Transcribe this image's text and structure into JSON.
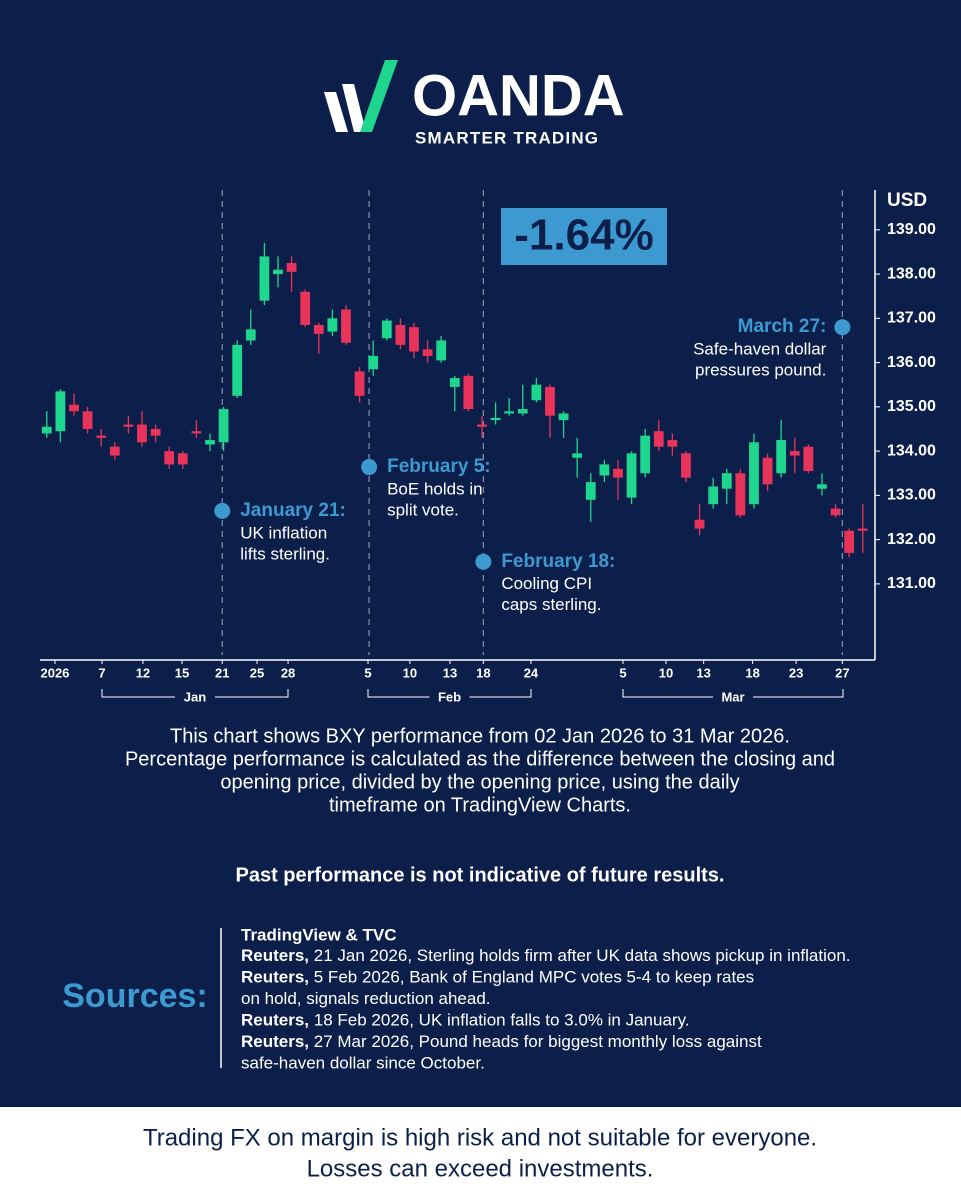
{
  "brand": {
    "name": "OANDA",
    "tagline": "SMARTER TRADING"
  },
  "chart_data": {
    "type": "candlestick",
    "y_axis_label": "USD",
    "performance_label": "-1.64%",
    "up_color": "#1fd68e",
    "down_color": "#e8345b",
    "ylim": [
      129.28,
      139.9
    ],
    "yticks": [
      {
        "value": 131,
        "label": "131.00"
      },
      {
        "value": 132,
        "label": "132.00"
      },
      {
        "value": 133,
        "label": "133.00"
      },
      {
        "value": 134,
        "label": "134.00"
      },
      {
        "value": 135,
        "label": "135.00"
      },
      {
        "value": 136,
        "label": "136.00"
      },
      {
        "value": 137,
        "label": "137.00"
      },
      {
        "value": 138,
        "label": "138.00"
      },
      {
        "value": 139,
        "label": "139.00"
      }
    ],
    "xlim": [
      -0.5,
      60.9
    ],
    "xticks": [
      {
        "value": 0.6,
        "label": "2026"
      },
      {
        "value": 4.06,
        "label": "7"
      },
      {
        "value": 7.07,
        "label": "12"
      },
      {
        "value": 9.94,
        "label": "15"
      },
      {
        "value": 12.9,
        "label": "21"
      },
      {
        "value": 15.46,
        "label": "25"
      },
      {
        "value": 17.74,
        "label": "28"
      },
      {
        "value": 23.62,
        "label": "5"
      },
      {
        "value": 26.7,
        "label": "10"
      },
      {
        "value": 29.65,
        "label": "13"
      },
      {
        "value": 32.1,
        "label": "18"
      },
      {
        "value": 35.6,
        "label": "24"
      },
      {
        "value": 42.37,
        "label": "5"
      },
      {
        "value": 45.53,
        "label": "10"
      },
      {
        "value": 48.3,
        "label": "13"
      },
      {
        "value": 51.9,
        "label": "18"
      },
      {
        "value": 55.1,
        "label": "23"
      },
      {
        "value": 58.5,
        "label": "27"
      }
    ],
    "month_labels": [
      "Jan",
      "Feb",
      "Mar"
    ],
    "open": [
      134.4,
      134.45,
      135.05,
      134.9,
      134.35,
      134.1,
      134.6,
      134.6,
      134.5,
      134.0,
      133.95,
      134.45,
      134.15,
      134.2,
      135.25,
      136.5,
      137.4,
      138.0,
      138.25,
      137.6,
      136.85,
      136.7,
      137.2,
      135.8,
      135.85,
      136.55,
      136.85,
      136.8,
      136.3,
      136.05,
      135.45,
      135.7,
      134.6,
      134.7,
      134.85,
      134.85,
      135.15,
      135.45,
      134.7,
      133.85,
      132.9,
      133.45,
      133.6,
      132.95,
      133.5,
      134.45,
      134.25,
      133.95,
      132.45,
      132.8,
      133.15,
      133.5,
      132.8,
      133.85,
      133.5,
      134.0,
      134.1,
      133.15,
      132.7,
      132.2,
      132.25
    ],
    "high": [
      134.9,
      135.4,
      135.3,
      135.0,
      134.5,
      134.2,
      134.8,
      134.9,
      134.6,
      134.1,
      134.0,
      134.7,
      134.4,
      135.0,
      136.5,
      137.2,
      138.7,
      138.4,
      138.4,
      137.65,
      136.9,
      137.2,
      137.3,
      135.9,
      136.5,
      137.0,
      137.0,
      136.9,
      136.5,
      136.6,
      135.7,
      135.75,
      134.8,
      135.1,
      135.2,
      135.5,
      135.65,
      135.5,
      134.9,
      134.3,
      133.5,
      133.8,
      133.8,
      134.0,
      134.5,
      134.7,
      134.4,
      134.0,
      132.8,
      133.4,
      133.6,
      133.6,
      134.4,
      133.95,
      134.7,
      134.3,
      134.15,
      133.5,
      132.8,
      132.25,
      132.8
    ],
    "low": [
      134.3,
      134.2,
      134.8,
      134.4,
      134.1,
      133.8,
      134.4,
      134.1,
      134.2,
      133.6,
      133.6,
      134.3,
      134.0,
      134.0,
      135.2,
      136.4,
      137.3,
      137.7,
      137.6,
      136.8,
      136.2,
      136.6,
      136.4,
      135.1,
      135.7,
      136.5,
      136.3,
      136.1,
      136.0,
      136.0,
      134.9,
      134.9,
      134.3,
      134.6,
      134.8,
      134.8,
      135.1,
      134.3,
      134.3,
      133.4,
      132.4,
      133.3,
      132.9,
      132.8,
      133.4,
      134.0,
      133.9,
      133.3,
      132.1,
      132.7,
      132.8,
      132.5,
      132.7,
      133.1,
      133.4,
      133.5,
      133.5,
      133.0,
      132.5,
      131.6,
      131.7
    ],
    "close": [
      134.55,
      135.35,
      134.9,
      134.5,
      134.3,
      133.9,
      134.55,
      134.2,
      134.35,
      133.7,
      133.7,
      134.4,
      134.25,
      134.95,
      136.4,
      136.75,
      138.4,
      138.1,
      138.05,
      136.85,
      136.65,
      137.0,
      136.45,
      135.25,
      136.15,
      136.95,
      136.4,
      136.25,
      136.15,
      136.5,
      135.65,
      134.95,
      134.55,
      134.75,
      134.9,
      134.95,
      135.5,
      134.8,
      134.85,
      133.95,
      133.3,
      133.7,
      133.4,
      133.95,
      134.35,
      134.1,
      134.1,
      133.4,
      132.25,
      133.2,
      133.5,
      132.55,
      134.2,
      133.25,
      134.25,
      133.9,
      133.55,
      133.25,
      132.55,
      131.7,
      132.2
    ],
    "annotations": [
      {
        "x": 12.9,
        "y": 132.65,
        "title": "January 21:",
        "lines": [
          "UK inflation",
          "lifts sterling."
        ]
      },
      {
        "x": 23.7,
        "y": 133.64,
        "title": "February 5:",
        "lines": [
          "BoE holds in",
          "split vote."
        ]
      },
      {
        "x": 32.1,
        "y": 131.5,
        "title": "February 18:",
        "lines": [
          "Cooling CPI",
          "caps sterling."
        ]
      },
      {
        "x": 58.5,
        "y": 136.8,
        "title": "March 27:",
        "lines": [
          "Safe-haven dollar",
          "pressures pound."
        ]
      }
    ]
  },
  "description": [
    "This chart shows BXY performance from 02 Jan 2026 to 31 Mar 2026.",
    "Percentage performance is calculated as the difference between the closing and",
    "opening price, divided by the opening price, using the daily",
    "timeframe on TradingView Charts."
  ],
  "disclaimer": "Past performance is not indicative of future results.",
  "sources": {
    "heading": "Sources:",
    "first": "TradingView & TVC",
    "items": [
      {
        "source": "Reuters,",
        "lines": [
          " 21 Jan 2026, Sterling holds firm after UK data shows pickup in inflation."
        ]
      },
      {
        "source": "Reuters,",
        "lines": [
          " 5 Feb 2026, Bank of England MPC votes 5-4 to keep rates",
          "on hold, signals reduction ahead."
        ]
      },
      {
        "source": "Reuters,",
        "lines": [
          " 18 Feb 2026, UK inflation falls to 3.0% in January."
        ]
      },
      {
        "source": "Reuters,",
        "lines": [
          " 27 Mar 2026, Pound heads for biggest monthly loss against",
          "safe-haven dollar since October."
        ]
      }
    ]
  },
  "footer": [
    "Trading FX on margin is high risk and not suitable for everyone.",
    "Losses can exceed investments."
  ]
}
